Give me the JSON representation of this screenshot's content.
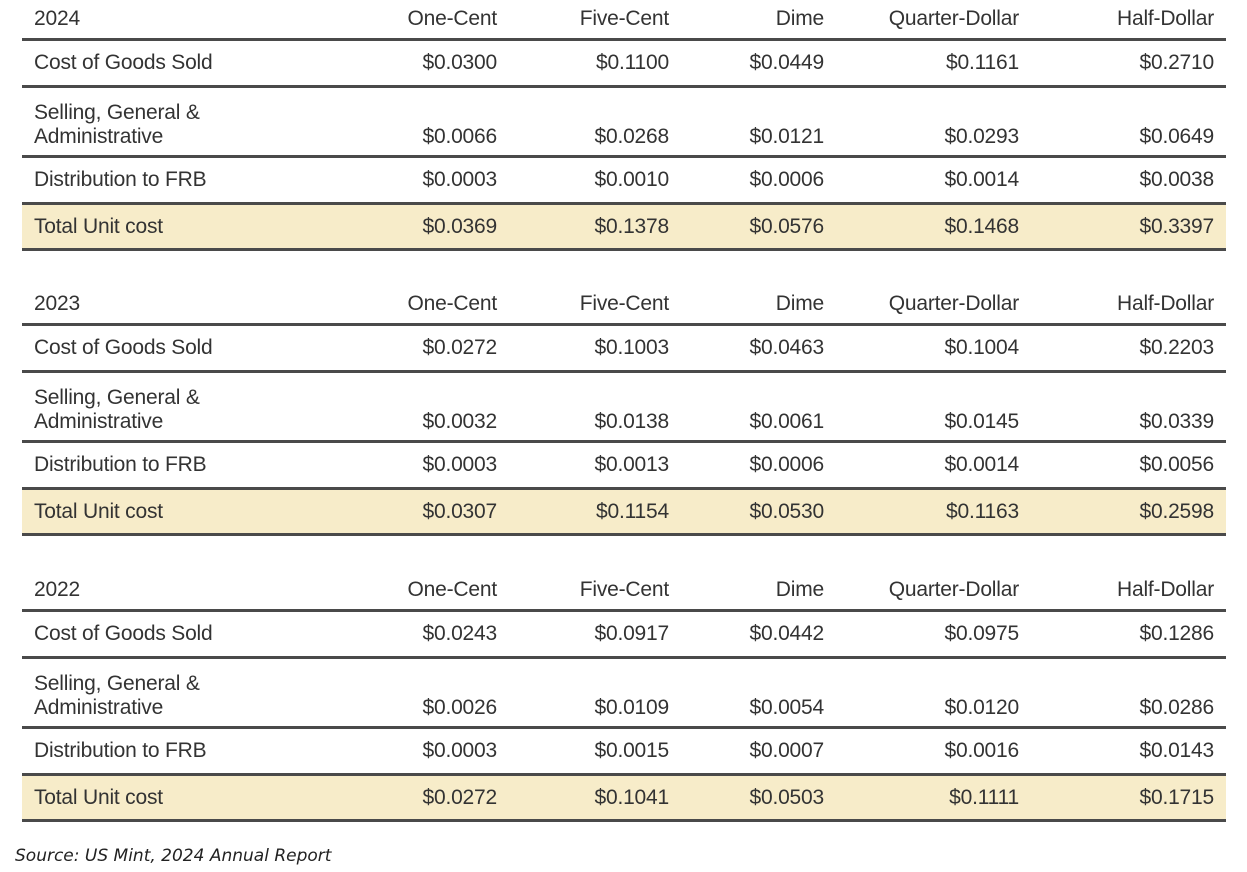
{
  "columns": [
    "One-Cent",
    "Five-Cent",
    "Dime",
    "Quarter-Dollar",
    "Half-Dollar"
  ],
  "tables": [
    {
      "year": "2024",
      "rows": {
        "cogs": {
          "label": "Cost of Goods Sold",
          "values": [
            "$0.0300",
            "$0.1100",
            "$0.0449",
            "$0.1161",
            "$0.2710"
          ]
        },
        "sga": {
          "label": "Selling, General & Administrative",
          "values": [
            "$0.0066",
            "$0.0268",
            "$0.0121",
            "$0.0293",
            "$0.0649"
          ]
        },
        "dist": {
          "label": "Distribution to FRB",
          "values": [
            "$0.0003",
            "$0.0010",
            "$0.0006",
            "$0.0014",
            "$0.0038"
          ]
        },
        "total": {
          "label": "Total Unit cost",
          "values": [
            "$0.0369",
            "$0.1378",
            "$0.0576",
            "$0.1468",
            "$0.3397"
          ]
        }
      }
    },
    {
      "year": "2023",
      "rows": {
        "cogs": {
          "label": "Cost of Goods Sold",
          "values": [
            "$0.0272",
            "$0.1003",
            "$0.0463",
            "$0.1004",
            "$0.2203"
          ]
        },
        "sga": {
          "label": "Selling, General & Administrative",
          "values": [
            "$0.0032",
            "$0.0138",
            "$0.0061",
            "$0.0145",
            "$0.0339"
          ]
        },
        "dist": {
          "label": "Distribution to FRB",
          "values": [
            "$0.0003",
            "$0.0013",
            "$0.0006",
            "$0.0014",
            "$0.0056"
          ]
        },
        "total": {
          "label": "Total Unit cost",
          "values": [
            "$0.0307",
            "$0.1154",
            "$0.0530",
            "$0.1163",
            "$0.2598"
          ]
        }
      }
    },
    {
      "year": "2022",
      "rows": {
        "cogs": {
          "label": "Cost of Goods Sold",
          "values": [
            "$0.0243",
            "$0.0917",
            "$0.0442",
            "$0.0975",
            "$0.1286"
          ]
        },
        "sga": {
          "label": "Selling, General & Administrative",
          "values": [
            "$0.0026",
            "$0.0109",
            "$0.0054",
            "$0.0120",
            "$0.0286"
          ]
        },
        "dist": {
          "label": "Distribution to FRB",
          "values": [
            "$0.0003",
            "$0.0015",
            "$0.0007",
            "$0.0016",
            "$0.0143"
          ]
        },
        "total": {
          "label": "Total Unit cost",
          "values": [
            "$0.0272",
            "$0.1041",
            "$0.0503",
            "$0.1111",
            "$0.1715"
          ]
        }
      }
    }
  ],
  "source": "Source: US Mint, 2024 Annual Report",
  "colors": {
    "total_row_bg": "#f7ecc9",
    "rule": "#4a4a4a",
    "text": "#333333"
  }
}
